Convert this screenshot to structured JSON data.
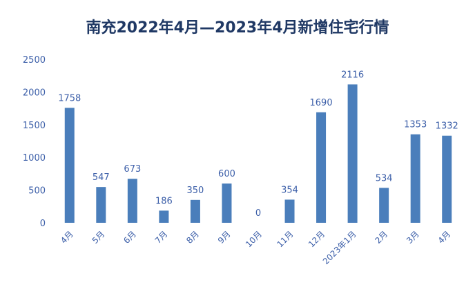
{
  "chart_data": {
    "type": "bar",
    "title": "南充2022年4月—2023年4月新增住宅行情",
    "categories": [
      "4月",
      "5月",
      "6月",
      "7月",
      "8月",
      "9月",
      "10月",
      "11月",
      "12月",
      "2023年1月",
      "2月",
      "3月",
      "4月"
    ],
    "values": [
      1758,
      547,
      673,
      186,
      350,
      600,
      0,
      354,
      1690,
      2116,
      534,
      1353,
      1332
    ],
    "ylim": [
      0,
      2500
    ],
    "yticks": [
      0,
      500,
      1000,
      1500,
      2000,
      2500
    ],
    "grid": false,
    "bar_color": "#4a7ebb",
    "text_color": "#3b5ea8"
  }
}
